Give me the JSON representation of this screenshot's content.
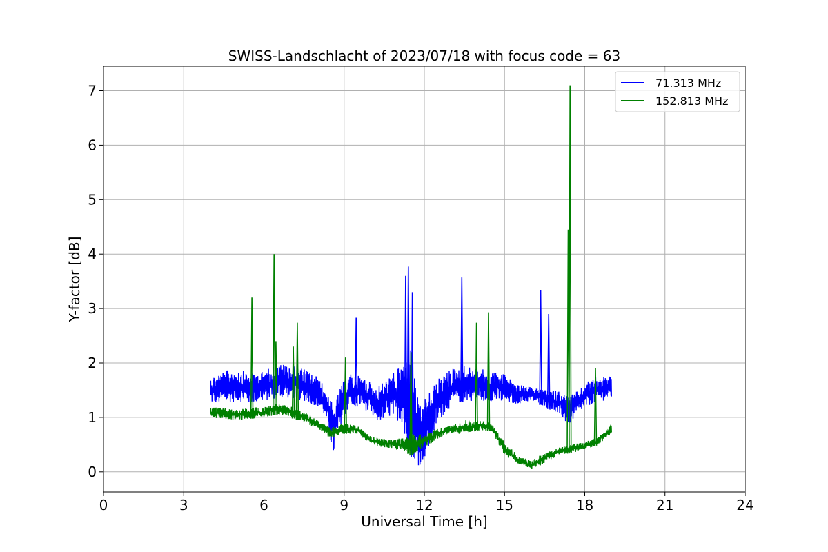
{
  "chart_data": {
    "type": "line",
    "title": "SWISS-Landschlacht of 2023/07/18 with focus code = 63",
    "xlabel": "Universal Time [h]",
    "ylabel": "Y-factor [dB]",
    "xlim": [
      0,
      24
    ],
    "ylim": [
      -0.37,
      7.45
    ],
    "xticks": [
      0,
      3,
      6,
      9,
      12,
      15,
      18,
      21,
      24
    ],
    "yticks": [
      0,
      1,
      2,
      3,
      4,
      5,
      6,
      7
    ],
    "grid": true,
    "legend_position": "top-right",
    "series": [
      {
        "name": "  71.313 MHz",
        "color": "#0000ff",
        "band": [
          {
            "x": 4.0,
            "lo": 1.25,
            "hi": 1.75
          },
          {
            "x": 4.5,
            "lo": 1.25,
            "hi": 1.85
          },
          {
            "x": 5.0,
            "lo": 1.3,
            "hi": 1.9
          },
          {
            "x": 5.5,
            "lo": 1.25,
            "hi": 1.8
          },
          {
            "x": 6.0,
            "lo": 1.3,
            "hi": 1.85
          },
          {
            "x": 6.5,
            "lo": 1.35,
            "hi": 2.0
          },
          {
            "x": 7.0,
            "lo": 1.35,
            "hi": 1.95
          },
          {
            "x": 7.5,
            "lo": 1.3,
            "hi": 1.9
          },
          {
            "x": 8.0,
            "lo": 1.2,
            "hi": 1.75
          },
          {
            "x": 8.3,
            "lo": 1.0,
            "hi": 1.55
          },
          {
            "x": 8.6,
            "lo": 0.3,
            "hi": 1.2
          },
          {
            "x": 8.9,
            "lo": 0.9,
            "hi": 1.6
          },
          {
            "x": 9.2,
            "lo": 1.2,
            "hi": 1.8
          },
          {
            "x": 9.7,
            "lo": 1.2,
            "hi": 1.75
          },
          {
            "x": 10.2,
            "lo": 0.9,
            "hi": 1.55
          },
          {
            "x": 10.7,
            "lo": 1.0,
            "hi": 1.75
          },
          {
            "x": 11.2,
            "lo": 0.9,
            "hi": 2.0
          },
          {
            "x": 11.5,
            "lo": 0.3,
            "hi": 2.3
          },
          {
            "x": 11.8,
            "lo": 0.1,
            "hi": 1.2
          },
          {
            "x": 12.1,
            "lo": 0.3,
            "hi": 1.4
          },
          {
            "x": 12.5,
            "lo": 0.9,
            "hi": 1.7
          },
          {
            "x": 13.0,
            "lo": 1.2,
            "hi": 1.9
          },
          {
            "x": 13.5,
            "lo": 1.3,
            "hi": 1.95
          },
          {
            "x": 14.0,
            "lo": 1.3,
            "hi": 1.9
          },
          {
            "x": 14.5,
            "lo": 1.3,
            "hi": 1.85
          },
          {
            "x": 15.0,
            "lo": 1.25,
            "hi": 1.8
          },
          {
            "x": 15.5,
            "lo": 1.25,
            "hi": 1.6
          },
          {
            "x": 16.0,
            "lo": 1.3,
            "hi": 1.55
          },
          {
            "x": 16.5,
            "lo": 1.2,
            "hi": 1.5
          },
          {
            "x": 17.0,
            "lo": 1.05,
            "hi": 1.5
          },
          {
            "x": 17.4,
            "lo": 0.85,
            "hi": 1.4
          },
          {
            "x": 17.8,
            "lo": 1.1,
            "hi": 1.5
          },
          {
            "x": 18.3,
            "lo": 1.25,
            "hi": 1.75
          },
          {
            "x": 19.0,
            "lo": 1.35,
            "hi": 1.75
          }
        ],
        "spikes": [
          {
            "x": 9.45,
            "y": 2.83
          },
          {
            "x": 11.3,
            "y": 3.6
          },
          {
            "x": 11.4,
            "y": 3.77
          },
          {
            "x": 11.55,
            "y": 3.3
          },
          {
            "x": 13.4,
            "y": 3.57
          },
          {
            "x": 16.35,
            "y": 3.34
          },
          {
            "x": 16.65,
            "y": 2.9
          }
        ]
      },
      {
        "name": "152.813 MHz",
        "color": "#008000",
        "band": [
          {
            "x": 4.0,
            "lo": 1.0,
            "hi": 1.2
          },
          {
            "x": 5.0,
            "lo": 0.95,
            "hi": 1.15
          },
          {
            "x": 6.0,
            "lo": 1.0,
            "hi": 1.2
          },
          {
            "x": 6.5,
            "lo": 1.05,
            "hi": 1.25
          },
          {
            "x": 7.0,
            "lo": 1.0,
            "hi": 1.2
          },
          {
            "x": 7.5,
            "lo": 0.9,
            "hi": 1.1
          },
          {
            "x": 8.0,
            "lo": 0.8,
            "hi": 0.95
          },
          {
            "x": 8.5,
            "lo": 0.6,
            "hi": 0.8
          },
          {
            "x": 9.0,
            "lo": 0.7,
            "hi": 0.9
          },
          {
            "x": 9.5,
            "lo": 0.7,
            "hi": 0.85
          },
          {
            "x": 10.0,
            "lo": 0.5,
            "hi": 0.65
          },
          {
            "x": 10.5,
            "lo": 0.45,
            "hi": 0.6
          },
          {
            "x": 11.0,
            "lo": 0.4,
            "hi": 0.6
          },
          {
            "x": 11.5,
            "lo": 0.3,
            "hi": 0.7
          },
          {
            "x": 12.0,
            "lo": 0.45,
            "hi": 0.7
          },
          {
            "x": 12.5,
            "lo": 0.6,
            "hi": 0.8
          },
          {
            "x": 13.0,
            "lo": 0.7,
            "hi": 0.85
          },
          {
            "x": 13.5,
            "lo": 0.7,
            "hi": 0.95
          },
          {
            "x": 14.0,
            "lo": 0.75,
            "hi": 0.95
          },
          {
            "x": 14.5,
            "lo": 0.75,
            "hi": 0.9
          },
          {
            "x": 15.0,
            "lo": 0.3,
            "hi": 0.55
          },
          {
            "x": 15.5,
            "lo": 0.15,
            "hi": 0.3
          },
          {
            "x": 16.0,
            "lo": 0.05,
            "hi": 0.2
          },
          {
            "x": 16.5,
            "lo": 0.15,
            "hi": 0.35
          },
          {
            "x": 17.0,
            "lo": 0.3,
            "hi": 0.45
          },
          {
            "x": 17.5,
            "lo": 0.35,
            "hi": 0.5
          },
          {
            "x": 18.0,
            "lo": 0.4,
            "hi": 0.55
          },
          {
            "x": 18.5,
            "lo": 0.5,
            "hi": 0.65
          },
          {
            "x": 19.0,
            "lo": 0.7,
            "hi": 0.9
          }
        ],
        "spikes": [
          {
            "x": 5.55,
            "y": 3.2
          },
          {
            "x": 6.38,
            "y": 4.0
          },
          {
            "x": 6.45,
            "y": 2.4
          },
          {
            "x": 7.1,
            "y": 2.3
          },
          {
            "x": 7.25,
            "y": 2.74
          },
          {
            "x": 9.05,
            "y": 2.1
          },
          {
            "x": 11.5,
            "y": 2.2
          },
          {
            "x": 13.95,
            "y": 2.74
          },
          {
            "x": 14.4,
            "y": 2.93
          },
          {
            "x": 17.45,
            "y": 7.1
          },
          {
            "x": 17.38,
            "y": 4.45
          },
          {
            "x": 18.4,
            "y": 1.9
          }
        ]
      }
    ]
  }
}
